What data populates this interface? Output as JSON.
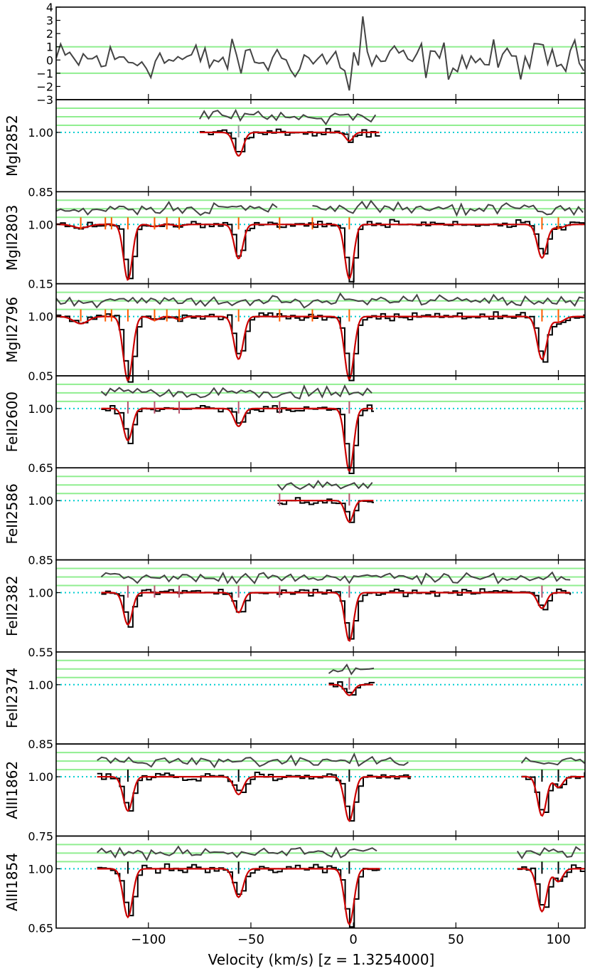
{
  "chart_data": {
    "type": "line",
    "xlabel": "Velocity (km/s) [z = 1.3254000]",
    "xlim": [
      -145,
      113
    ],
    "x_ticks": [
      -100,
      -50,
      0,
      50,
      100
    ],
    "x_tick_labels": [
      "−100",
      "−50",
      "0",
      "50",
      "100"
    ],
    "colors": {
      "spectrum": "#000000",
      "model": "#cc0000",
      "residual": "#444444",
      "sigma_band": "#90ee90",
      "continuum": "#00ced1",
      "tick_magnesium": "#ff5a00",
      "tick_iron": "#b5536b",
      "tick_aluminium": "#000000",
      "tick_mgI": "#999999"
    },
    "residual_panel": {
      "ylim": [
        -3,
        4
      ],
      "y_ticks": [
        4,
        3,
        2,
        1,
        0,
        -1,
        -2,
        -3
      ],
      "y_tick_labels": [
        "4",
        "3",
        "2",
        "1",
        "0",
        "−1",
        "−2",
        "−3"
      ],
      "band_levels": [
        1,
        -1
      ]
    },
    "absorption_components": [
      -133,
      -110,
      -97,
      -85,
      -56,
      -36,
      -20,
      -2,
      92,
      100
    ],
    "panels": [
      {
        "label": "MgI2852",
        "ylim_label": "0.85",
        "vrange": [
          -75,
          13
        ],
        "tick_color": "tick_mgI",
        "ticks": [
          -56,
          -2
        ],
        "lines": [
          {
            "v": -56,
            "depth": 0.33,
            "w": 3.2
          },
          {
            "v": -2,
            "depth": 0.12,
            "w": 2.6
          }
        ]
      },
      {
        "label": "MgII2803",
        "ylim_label": "0.15",
        "vrange": [
          -145,
          113
        ],
        "gap": [
          -37,
          -20
        ],
        "tick_color": "tick_magnesium",
        "ticks": [
          -133,
          -121,
          -118,
          -110,
          -97,
          -91,
          -85,
          -56,
          -36,
          -20,
          -2,
          92,
          100
        ],
        "lines": [
          {
            "v": -133,
            "depth": 0.05,
            "w": 5
          },
          {
            "v": -110,
            "depth": 0.78,
            "w": 3.0
          },
          {
            "v": -97,
            "depth": 0.03,
            "w": 3
          },
          {
            "v": -85,
            "depth": 0.02,
            "w": 3
          },
          {
            "v": -56,
            "depth": 0.48,
            "w": 3.0
          },
          {
            "v": -2,
            "depth": 0.76,
            "w": 3.0
          },
          {
            "v": 92,
            "depth": 0.47,
            "w": 3.2
          },
          {
            "v": 100,
            "depth": 0.05,
            "w": 4
          }
        ]
      },
      {
        "label": "MgII2796",
        "ylim_label": "0.05",
        "vrange": [
          -145,
          113
        ],
        "tick_color": "tick_magnesium",
        "ticks": [
          -133,
          -121,
          -118,
          -110,
          -97,
          -91,
          -85,
          -56,
          -36,
          -20,
          -2,
          92,
          100
        ],
        "lines": [
          {
            "v": -133,
            "depth": 0.1,
            "w": 5
          },
          {
            "v": -110,
            "depth": 0.9,
            "w": 3.2
          },
          {
            "v": -97,
            "depth": 0.05,
            "w": 3
          },
          {
            "v": -85,
            "depth": 0.04,
            "w": 3
          },
          {
            "v": -56,
            "depth": 0.6,
            "w": 3.2
          },
          {
            "v": -2,
            "depth": 0.88,
            "w": 3.2
          },
          {
            "v": 92,
            "depth": 0.6,
            "w": 3.3
          },
          {
            "v": 100,
            "depth": 0.08,
            "w": 4
          }
        ]
      },
      {
        "label": "FeII2600",
        "ylim_label": "0.65",
        "vrange": [
          -123,
          10
        ],
        "tick_color": "tick_iron",
        "ticks": [
          -110,
          -97,
          -85,
          -56,
          -36,
          -2
        ],
        "lines": [
          {
            "v": -110,
            "depth": 0.45,
            "w": 3.0
          },
          {
            "v": -56,
            "depth": 0.25,
            "w": 3.0
          },
          {
            "v": -2,
            "depth": 0.88,
            "w": 3.0
          }
        ]
      },
      {
        "label": "FeII2586",
        "ylim_label": "0.85",
        "vrange": [
          -37,
          10
        ],
        "tick_color": "tick_iron",
        "ticks": [
          -36,
          -2
        ],
        "lines": [
          {
            "v": -2,
            "depth": 0.3,
            "w": 2.8
          }
        ]
      },
      {
        "label": "FeII2382",
        "ylim_label": "0.55",
        "vrange": [
          -123,
          106
        ],
        "tick_color": "tick_iron",
        "ticks": [
          -110,
          -97,
          -85,
          -56,
          -36,
          -2,
          92
        ],
        "lines": [
          {
            "v": -110,
            "depth": 0.45,
            "w": 3.0
          },
          {
            "v": -56,
            "depth": 0.28,
            "w": 3.0
          },
          {
            "v": -2,
            "depth": 0.68,
            "w": 3.0
          },
          {
            "v": 92,
            "depth": 0.22,
            "w": 3.0
          }
        ]
      },
      {
        "label": "FeII2374",
        "ylim_label": "0.85",
        "vrange": [
          -12,
          10
        ],
        "tick_color": "tick_iron",
        "ticks": [
          -2
        ],
        "lines": [
          {
            "v": -2,
            "depth": 0.15,
            "w": 3.0
          }
        ]
      },
      {
        "label": "AlII1862",
        "ylim_label": "0.75",
        "vrange": [
          -125,
          28
        ],
        "vrange2": [
          82,
          113
        ],
        "tick_color": "tick_aluminium",
        "ticks": [
          -110,
          -56,
          -2,
          92,
          100
        ],
        "lines": [
          {
            "v": -110,
            "depth": 0.48,
            "w": 3.2
          },
          {
            "v": -56,
            "depth": 0.25,
            "w": 3.2
          },
          {
            "v": -2,
            "depth": 0.62,
            "w": 3.2
          },
          {
            "v": 92,
            "depth": 0.55,
            "w": 3.0
          },
          {
            "v": 100,
            "depth": 0.15,
            "w": 3
          }
        ]
      },
      {
        "label": "AlII1854",
        "ylim_label": "0.65",
        "vrange": [
          -125,
          13
        ],
        "vrange2": [
          80,
          113
        ],
        "tick_color": "tick_aluminium",
        "ticks": [
          -110,
          -56,
          -2,
          92,
          100
        ],
        "lines": [
          {
            "v": -110,
            "depth": 0.68,
            "w": 3.2
          },
          {
            "v": -56,
            "depth": 0.4,
            "w": 3.2
          },
          {
            "v": -2,
            "depth": 0.78,
            "w": 3.2
          },
          {
            "v": 92,
            "depth": 0.6,
            "w": 3.2
          },
          {
            "v": 100,
            "depth": 0.18,
            "w": 3
          }
        ]
      }
    ]
  }
}
